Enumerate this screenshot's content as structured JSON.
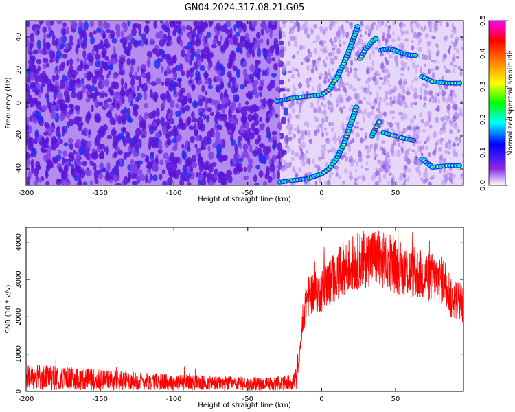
{
  "title": "GN04.2024.317.08.21.G05",
  "chart_data": [
    {
      "type": "heatmap",
      "xlabel": "Height of straight line (km)",
      "ylabel": "Frequency (Hz)",
      "xlim": [
        -200,
        96
      ],
      "ylim": [
        -50,
        50
      ],
      "xticks": [
        -200,
        -150,
        -100,
        -50,
        0,
        50
      ],
      "yticks": [
        -40,
        -20,
        0,
        20,
        40
      ],
      "colorbar": {
        "label": "Normalized spectral amplitude",
        "range": [
          0,
          0.5
        ],
        "ticks": [
          "0.0",
          "0.1",
          "0.2",
          "0.3",
          "0.4",
          "0.5"
        ],
        "colormap": [
          "#ffffff",
          "#8a2be2",
          "#0000ff",
          "#00ffff",
          "#00ff00",
          "#ffff00",
          "#ff8000",
          "#ff0000",
          "#ff00ff"
        ]
      },
      "background": {
        "noise_region_x": [
          -200,
          -28
        ],
        "noise_color": "#6a1ee0",
        "quiet_region_x": [
          -28,
          96
        ],
        "quiet_color": "#c9a9f2"
      },
      "tracks": [
        {
          "points": [
            [
              -30,
              1
            ],
            [
              -20,
              3
            ],
            [
              -10,
              4
            ],
            [
              0,
              5
            ],
            [
              5,
              8
            ],
            [
              10,
              15
            ],
            [
              15,
              24
            ],
            [
              20,
              35
            ],
            [
              25,
              48
            ]
          ]
        },
        {
          "points": [
            [
              -28,
              -48
            ],
            [
              -20,
              -47
            ],
            [
              -10,
              -46
            ],
            [
              0,
              -43
            ],
            [
              5,
              -40
            ],
            [
              10,
              -34
            ],
            [
              15,
              -25
            ],
            [
              20,
              -12
            ],
            [
              24,
              -1
            ]
          ]
        },
        {
          "points": [
            [
              26,
              27
            ],
            [
              30,
              33
            ],
            [
              35,
              38
            ],
            [
              38,
              40
            ]
          ]
        },
        {
          "points": [
            [
              40,
              32
            ],
            [
              45,
              33
            ],
            [
              50,
              32
            ],
            [
              55,
              30
            ],
            [
              60,
              29
            ],
            [
              65,
              29
            ]
          ]
        },
        {
          "points": [
            [
              34,
              -20
            ],
            [
              38,
              -13
            ],
            [
              40,
              -10
            ]
          ]
        },
        {
          "points": [
            [
              42,
              -18
            ],
            [
              50,
              -20
            ],
            [
              58,
              -22
            ],
            [
              64,
              -23
            ]
          ]
        },
        {
          "points": [
            [
              68,
              16
            ],
            [
              75,
              13
            ],
            [
              85,
              12
            ],
            [
              95,
              12
            ]
          ]
        },
        {
          "points": [
            [
              68,
              -34
            ],
            [
              75,
              -39
            ],
            [
              85,
              -38
            ],
            [
              95,
              -38
            ]
          ]
        }
      ]
    },
    {
      "type": "line",
      "xlabel": "Height of straight line (km)",
      "ylabel": "SNR (10 * v/v)",
      "xlim": [
        -200,
        96
      ],
      "ylim": [
        0,
        4400
      ],
      "xticks": [
        -200,
        -150,
        -100,
        -50,
        0,
        50
      ],
      "yticks": [
        0,
        1000,
        2000,
        3000,
        4000
      ],
      "color": "#ff0000",
      "envelope": {
        "x": [
          -200,
          -180,
          -160,
          -140,
          -120,
          -100,
          -80,
          -60,
          -40,
          -25,
          -20,
          -17,
          -15,
          -13,
          -10,
          -5,
          0,
          5,
          10,
          15,
          20,
          25,
          30,
          35,
          40,
          45,
          50,
          55,
          60,
          65,
          70,
          75,
          80,
          85,
          88,
          92,
          96
        ],
        "y": [
          380,
          360,
          330,
          300,
          270,
          250,
          230,
          210,
          200,
          220,
          260,
          350,
          900,
          1900,
          2500,
          2700,
          2700,
          2900,
          3100,
          3300,
          3400,
          3500,
          3550,
          3600,
          3550,
          3450,
          3350,
          3250,
          3200,
          3150,
          3100,
          3050,
          3000,
          2900,
          2400,
          2500,
          2300
        ]
      }
    }
  ]
}
